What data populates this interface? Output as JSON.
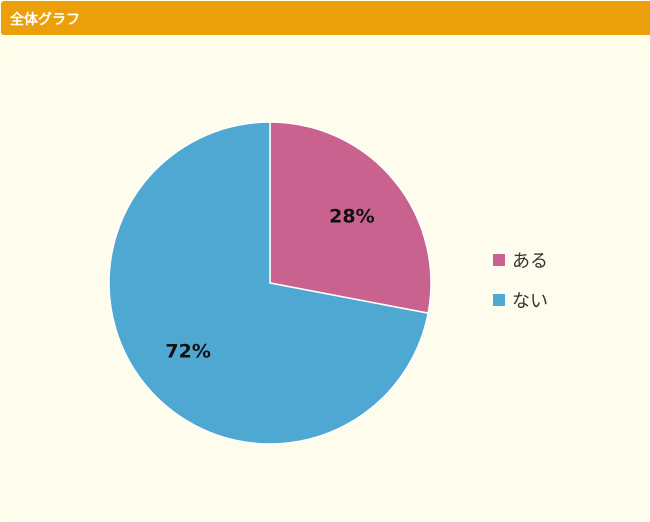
{
  "header": {
    "title": "全体グラフ"
  },
  "chart_data": {
    "type": "pie",
    "title": "",
    "categories": [
      "ある",
      "ない"
    ],
    "values": [
      28,
      72
    ],
    "labels": [
      "28%",
      "72%"
    ],
    "colors": [
      "#c9628f",
      "#4fa8d1"
    ],
    "legend_placement": "right",
    "start_angle": "top",
    "direction": "clockwise"
  }
}
